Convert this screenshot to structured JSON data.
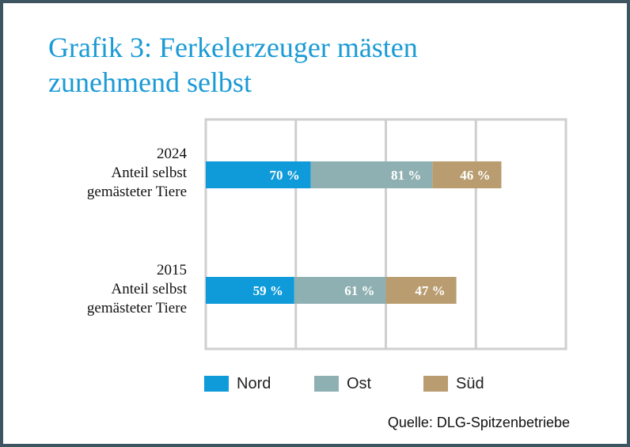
{
  "chart_data": {
    "type": "bar",
    "orientation": "horizontal",
    "stacked": true,
    "title_lines": [
      "Grafik 3: Ferkelerzeuger mästen",
      "zunehmend selbst"
    ],
    "categories": [
      {
        "year": "2024",
        "label_lines": [
          "Anteil selbst",
          "gemästeter Tiere"
        ]
      },
      {
        "year": "2015",
        "label_lines": [
          "Anteil selbst",
          "gemästeter Tiere"
        ]
      }
    ],
    "series": [
      {
        "name": "Nord",
        "color": "#0f9ad9",
        "values": [
          70,
          59
        ],
        "labels": [
          "70 %",
          "59 %"
        ]
      },
      {
        "name": "Ost",
        "color": "#8fb0b2",
        "values": [
          81,
          61
        ],
        "labels": [
          "81 %",
          "61 %"
        ]
      },
      {
        "name": "Süd",
        "color": "#b99d70",
        "values": [
          46,
          47
        ],
        "labels": [
          "46 %",
          "47 %"
        ]
      }
    ],
    "xlim": [
      0,
      240
    ],
    "grid": true,
    "legend_position": "bottom",
    "source": "Quelle: DLG-Spitzenbetriebe"
  }
}
